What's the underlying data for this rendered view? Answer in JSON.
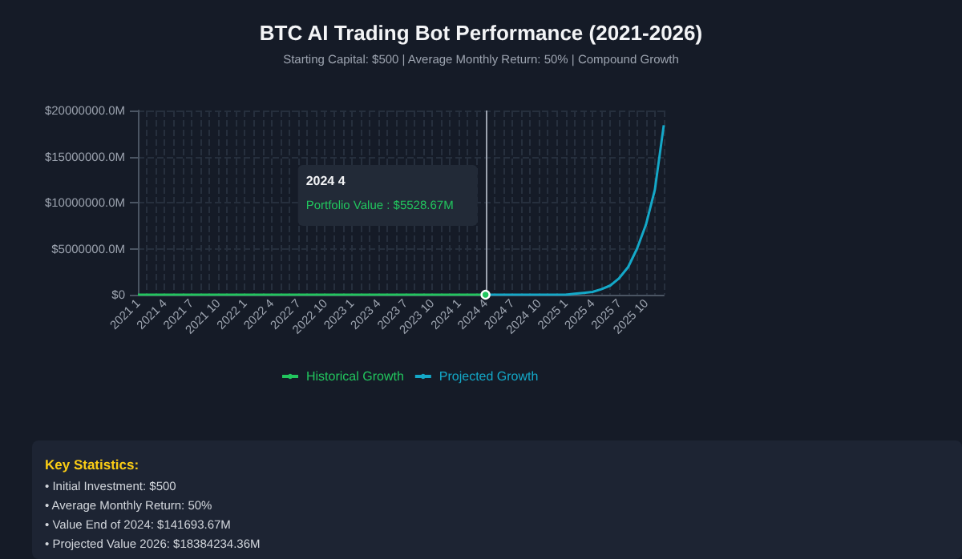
{
  "chart_data": {
    "type": "line",
    "title": "BTC AI Trading Bot Performance (2021-2026)",
    "subtitle": "Starting Capital: $500 | Average Monthly Return: 50% | Compound Growth",
    "categories": [
      "2021 1",
      null,
      null,
      "2021 4",
      null,
      null,
      "2021 7",
      null,
      null,
      "2021 10",
      null,
      null,
      "2022 1",
      null,
      null,
      "2022 4",
      null,
      null,
      "2022 7",
      null,
      null,
      "2022 10",
      null,
      null,
      "2023 1",
      null,
      null,
      "2023 4",
      null,
      null,
      "2023 7",
      null,
      null,
      "2023 10",
      null,
      null,
      "2024 1",
      null,
      null,
      "2024 4",
      null,
      null,
      "2024 7",
      null,
      null,
      "2024 10",
      null,
      null,
      "2025 1",
      null,
      null,
      "2025 4",
      null,
      null,
      "2025 7",
      null,
      null,
      "2025 10",
      null,
      null
    ],
    "series": [
      {
        "name": "Historical Growth",
        "color": "#22c55e",
        "values": [
          0,
          0,
          0,
          0,
          0,
          0,
          0,
          0,
          0,
          0,
          0,
          0,
          0,
          0,
          0,
          0,
          0,
          0,
          0,
          0,
          0,
          0,
          0,
          0,
          0,
          0,
          0,
          0,
          0,
          0,
          0,
          0,
          0,
          0,
          0,
          0,
          0,
          0,
          0,
          0,
          null,
          null,
          null,
          null,
          null,
          null,
          null,
          null,
          null,
          null,
          null,
          null,
          null,
          null,
          null,
          null,
          null,
          null,
          null,
          null
        ]
      },
      {
        "name": "Projected Growth",
        "color": "#14a8c8",
        "values": [
          null,
          null,
          null,
          null,
          null,
          null,
          null,
          null,
          null,
          null,
          null,
          null,
          null,
          null,
          null,
          null,
          null,
          null,
          null,
          null,
          null,
          null,
          null,
          null,
          null,
          null,
          null,
          null,
          null,
          null,
          null,
          null,
          null,
          null,
          null,
          null,
          null,
          null,
          null,
          0,
          0,
          0,
          0,
          0,
          0,
          0,
          0,
          0,
          0,
          100000,
          200000,
          300000,
          600000,
          1000000,
          1800000,
          3000000,
          5000000,
          7600000,
          11400000,
          18400000
        ]
      }
    ],
    "ylim": [
      0,
      20000000
    ],
    "yticks": [
      {
        "value": 0,
        "label": "$0"
      },
      {
        "value": 5000000,
        "label": "$5000000.0M"
      },
      {
        "value": 10000000,
        "label": "$10000000.0M"
      },
      {
        "value": 15000000,
        "label": "$15000000.0M"
      },
      {
        "value": 20000000,
        "label": "$20000000.0M"
      }
    ],
    "grid": true,
    "legend": "bottom",
    "marker": "none",
    "line_style": "solid",
    "ref_lines": [
      {
        "axis": "x",
        "value": "2024 4",
        "color": "#9ca3af"
      }
    ],
    "annotations": [
      "2024 4\nPortfolio Value : $5528.67M",
      "Key Statistics:",
      "• Initial Investment: $500",
      "• Average Monthly Return: 50%",
      "• Value End of 2024: $141693.67M",
      "• Projected Value 2026: $18384234.36M"
    ]
  }
}
